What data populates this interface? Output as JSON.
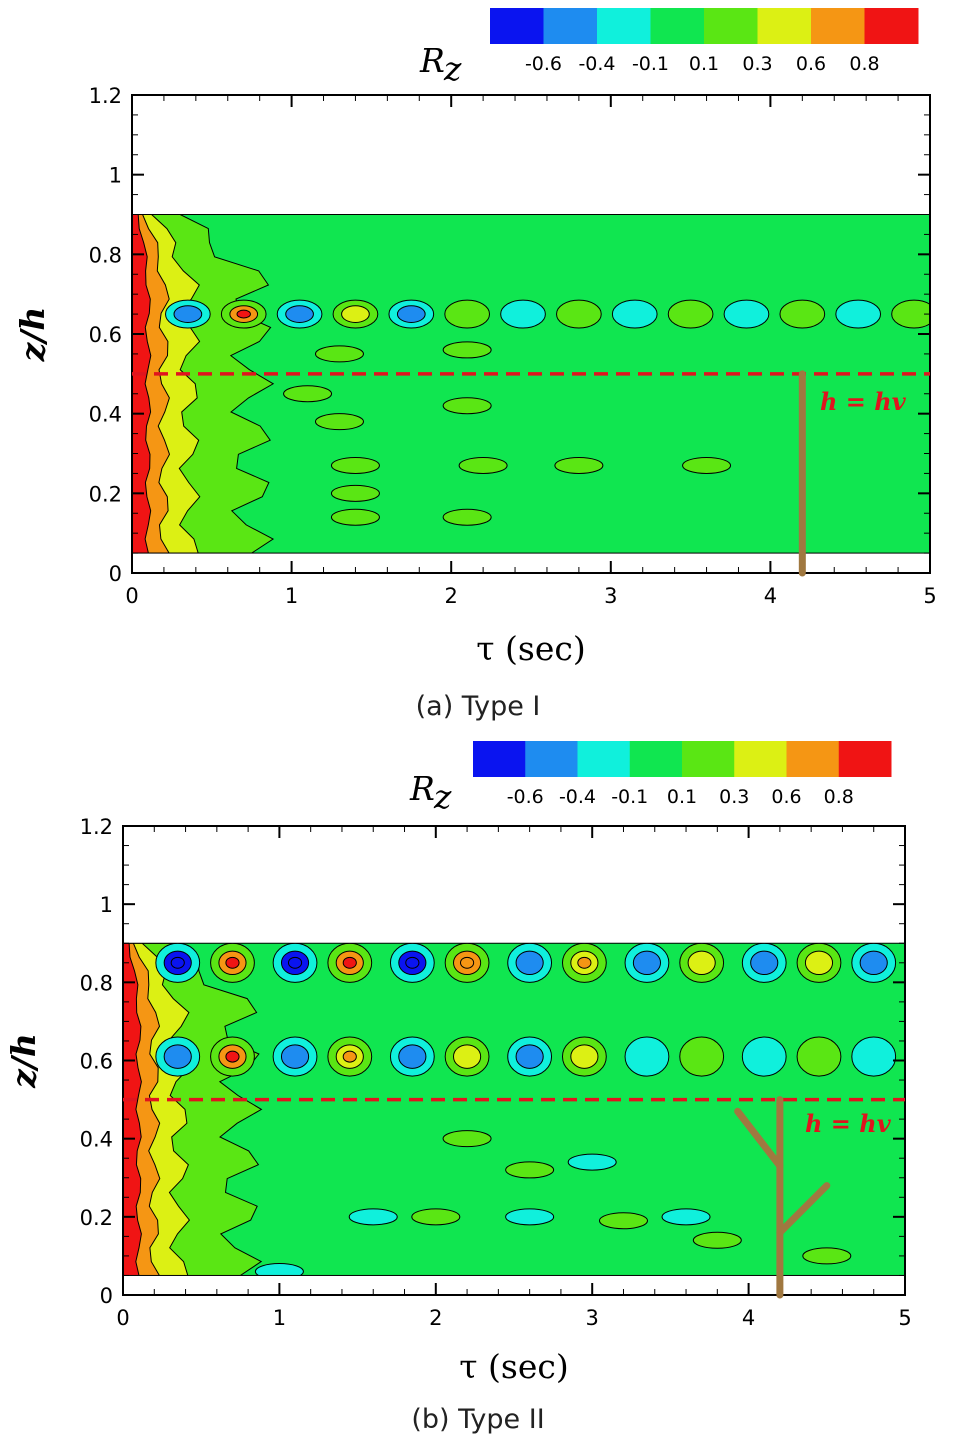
{
  "chart_data": [
    {
      "type": "heatmap",
      "caption": "(a) Type I",
      "xlabel": "τ (sec)",
      "ylabel": "z/h",
      "xlim": [
        0,
        5
      ],
      "ylim": [
        0,
        1.2
      ],
      "x_ticks": [
        "0",
        "1",
        "2",
        "3",
        "4",
        "5"
      ],
      "y_ticks": [
        "0",
        "0.2",
        "0.4",
        "0.6",
        "0.8",
        "1",
        "1.2"
      ],
      "field_z_range": [
        0.05,
        0.9
      ],
      "colorbar": {
        "title": "R",
        "subscript": "z",
        "labels": [
          "-0.6",
          "-0.4",
          "-0.1",
          "0.1",
          "0.3",
          "0.6",
          "0.8"
        ],
        "colors": [
          "#0a14f0",
          "#1e8cf0",
          "#10f0dc",
          "#10e650",
          "#5ae614",
          "#dcf014",
          "#f59614",
          "#f01414"
        ]
      },
      "reference_line": {
        "z": 0.5,
        "label": "h = hv",
        "color": "#e0141e"
      },
      "vegetation": {
        "type": "rigid stem",
        "x": 4.2,
        "z_top": 0.5,
        "color": "#a07840"
      },
      "oscillation_rows": [
        {
          "z": 0.65,
          "x": [
            0.35,
            0.7,
            1.05,
            1.4,
            1.75,
            2.1,
            2.45,
            2.8,
            3.15,
            3.5,
            3.85,
            4.2,
            4.55,
            4.9
          ],
          "values": [
            -0.5,
            0.7,
            -0.5,
            0.5,
            -0.4,
            0.3,
            -0.2,
            0.2,
            -0.15,
            0.15,
            -0.12,
            0.15,
            -0.12,
            0.15
          ]
        }
      ]
    },
    {
      "type": "heatmap",
      "caption": "(b) Type II",
      "xlabel": "τ (sec)",
      "ylabel": "z/h",
      "xlim": [
        0,
        5
      ],
      "ylim": [
        0,
        1.2
      ],
      "x_ticks": [
        "0",
        "1",
        "2",
        "3",
        "4",
        "5"
      ],
      "y_ticks": [
        "0",
        "0.2",
        "0.4",
        "0.6",
        "0.8",
        "1",
        "1.2"
      ],
      "field_z_range": [
        0.05,
        0.9
      ],
      "colorbar": {
        "title": "R",
        "subscript": "z",
        "labels": [
          "-0.6",
          "-0.4",
          "-0.1",
          "0.1",
          "0.3",
          "0.6",
          "0.8"
        ],
        "colors": [
          "#0a14f0",
          "#1e8cf0",
          "#10f0dc",
          "#10e650",
          "#5ae614",
          "#dcf014",
          "#f59614",
          "#f01414"
        ]
      },
      "reference_line": {
        "z": 0.5,
        "label": "h = hv",
        "color": "#e0141e"
      },
      "vegetation": {
        "type": "branched stem",
        "x": 4.2,
        "z_top": 0.5,
        "color": "#a07840"
      },
      "oscillation_rows": [
        {
          "z": 0.85,
          "x": [
            0.35,
            0.7,
            1.1,
            1.45,
            1.85,
            2.2,
            2.6,
            2.95,
            3.35,
            3.7,
            4.1,
            4.45,
            4.8
          ],
          "values": [
            -0.7,
            0.75,
            -0.7,
            0.7,
            -0.65,
            0.65,
            -0.55,
            0.6,
            -0.5,
            0.55,
            -0.5,
            0.5,
            -0.5
          ]
        },
        {
          "z": 0.61,
          "x": [
            0.35,
            0.7,
            1.1,
            1.45,
            1.85,
            2.2,
            2.6,
            2.95,
            3.35,
            3.7,
            4.1,
            4.45,
            4.8
          ],
          "values": [
            -0.55,
            0.7,
            -0.4,
            0.6,
            -0.5,
            0.5,
            -0.45,
            0.35,
            -0.3,
            0.25,
            -0.2,
            0.15,
            -0.15
          ]
        }
      ]
    }
  ]
}
